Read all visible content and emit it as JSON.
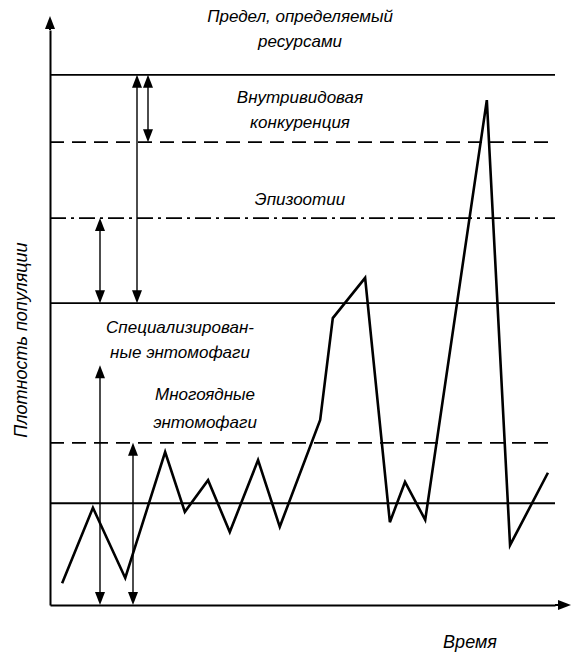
{
  "chart_data": {
    "type": "line",
    "x_label": "Время",
    "y_label": "Плотность популяции",
    "xlim": [
      0,
      100
    ],
    "ylim": [
      0,
      100
    ],
    "tick_labels": false,
    "grid": false,
    "x": [
      2.4,
      8.5,
      14.9,
      22.8,
      26.7,
      31.3,
      35.6,
      41.2,
      45.5,
      53.5,
      56.0,
      62.4,
      67.3,
      70.3,
      74.3,
      86.5,
      91.1,
      98.6
    ],
    "series": [
      {
        "color": "#000000",
        "line_style": "solid",
        "values": [
          3.8,
          16.9,
          4.7,
          26.6,
          16.2,
          21.7,
          12.7,
          25.2,
          13.6,
          32.2,
          49.9,
          56.9,
          14.4,
          21.4,
          14.8,
          87.8,
          10.4,
          23.0
        ]
      }
    ],
    "reference_lines": [
      {
        "value": 92.2,
        "label": "Предел, определяемый\nресурсами",
        "line_style": "solid"
      },
      {
        "value": 80.5,
        "label": "Внутривидовая\nконкуренция",
        "line_style": "dashed"
      },
      {
        "value": 67.3,
        "label": "Эпизоотии",
        "line_style": "dashdot"
      },
      {
        "value": 52.5,
        "label": "Специализирован-\nные энтомофаги",
        "line_style": "solid"
      },
      {
        "value": 28.2,
        "label": "Многоядные\nэнтомофаги",
        "line_style": "dashed"
      },
      {
        "value": 17.7,
        "line_style": "solid"
      }
    ]
  }
}
